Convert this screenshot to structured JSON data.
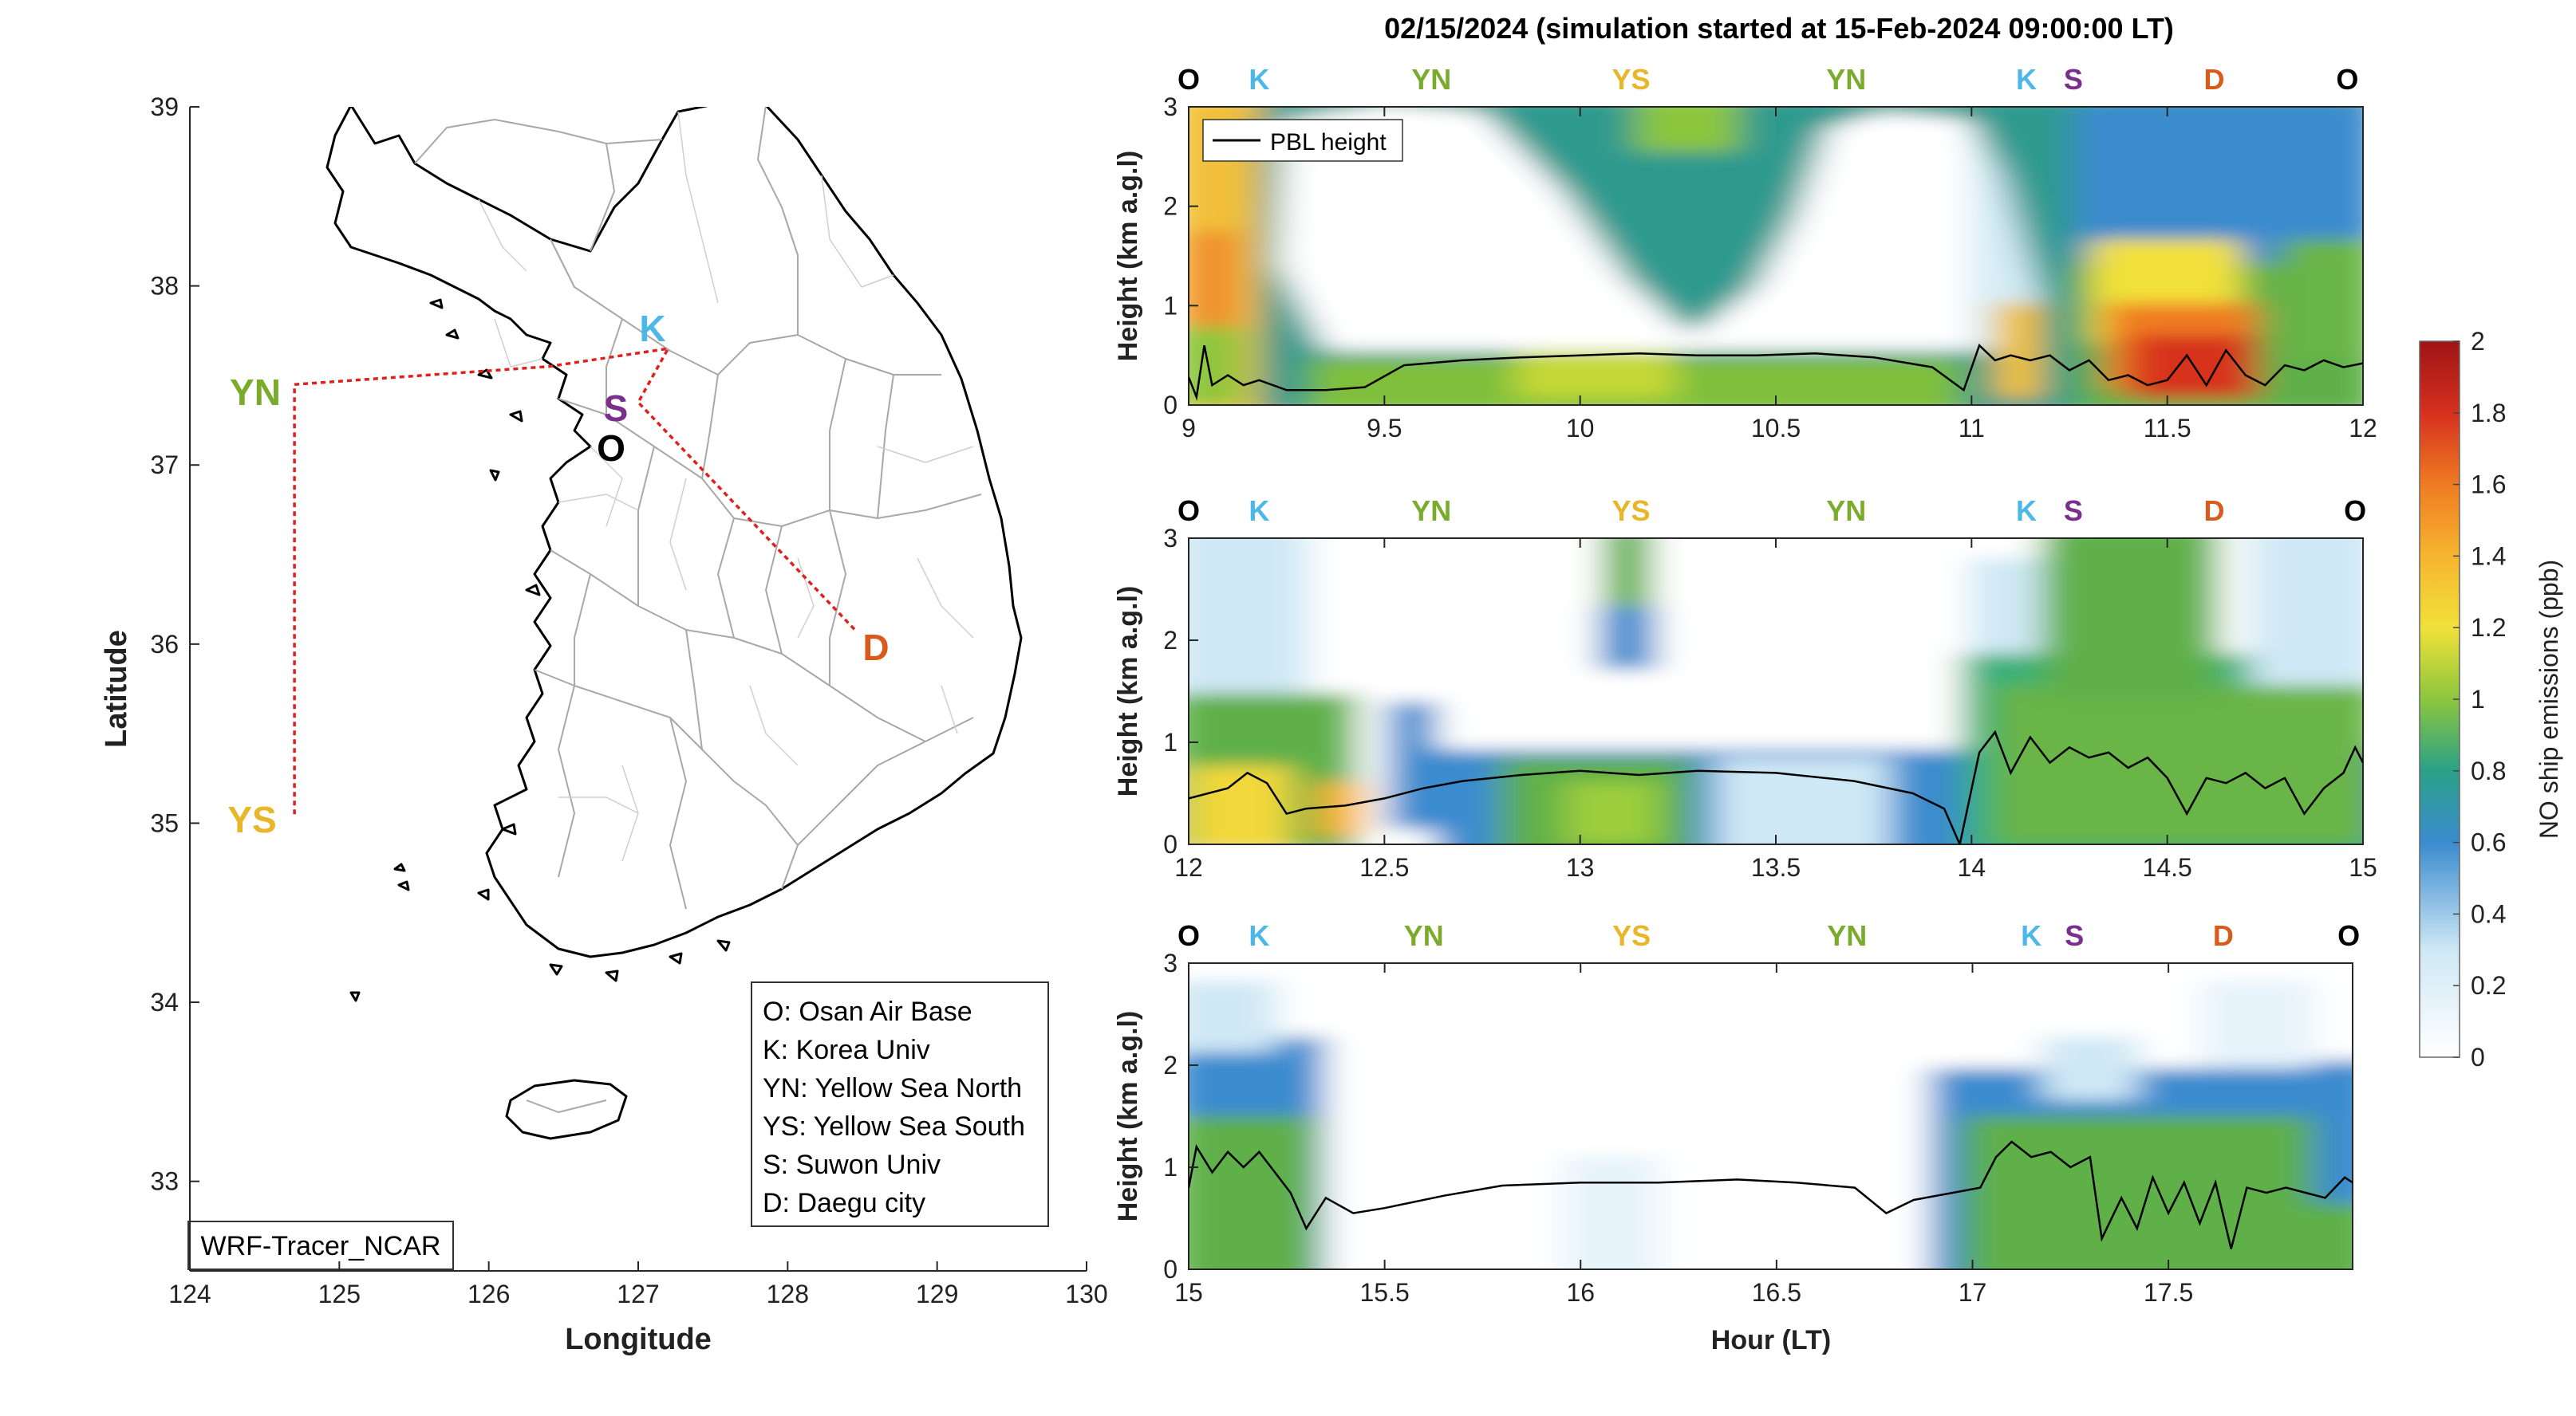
{
  "title": "02/15/2024 (simulation started at 15-Feb-2024 09:00:00 LT)",
  "colors": {
    "O": "#000000",
    "K": "#4db8e8",
    "YN": "#7aab2c",
    "YS": "#e8b629",
    "S": "#7b2f8c",
    "D": "#d95a1a",
    "route": "#e0201b"
  },
  "map": {
    "xlabel": "Longitude",
    "ylabel": "Latitude",
    "xlim": [
      124,
      130
    ],
    "ylim": [
      32.5,
      39
    ],
    "xticks": [
      124,
      125,
      126,
      127,
      128,
      129,
      130
    ],
    "yticks": [
      33,
      34,
      35,
      36,
      37,
      38,
      39
    ],
    "watermark": "WRF-Tracer_NCAR",
    "sites": [
      {
        "code": "K",
        "lon": 127.03,
        "lat": 37.59
      },
      {
        "code": "S",
        "lon": 126.86,
        "lat": 37.31
      },
      {
        "code": "O",
        "lon": 126.8,
        "lat": 37.1
      },
      {
        "code": "D",
        "lon": 128.55,
        "lat": 35.95
      },
      {
        "code": "YN",
        "lon": 124.35,
        "lat": 37.45
      },
      {
        "code": "YS",
        "lon": 124.3,
        "lat": 35.05
      }
    ],
    "route": [
      [
        124.7,
        35.05
      ],
      [
        124.7,
        37.45
      ],
      [
        126.4,
        37.55
      ],
      [
        127.2,
        37.65
      ],
      [
        127.0,
        37.35
      ],
      [
        128.45,
        36.08
      ]
    ],
    "legend": [
      "O: Osan Air Base",
      "K: Korea Univ",
      "YN: Yellow Sea North",
      "YS: Yellow Sea South",
      "S: Suwon Univ",
      "D: Daegu city"
    ]
  },
  "chart_data": {
    "type": "heatmap",
    "title": "02/15/2024 (simulation started at 15-Feb-2024 09:00:00 LT)",
    "xlabel": "Hour (LT)",
    "ylabel": "Height (km a.g.l)",
    "colorbar_label": "NO ship emissions (ppb)",
    "clim": [
      0,
      2
    ],
    "colorbar_ticks": [
      0,
      0.2,
      0.4,
      0.6,
      0.8,
      1,
      1.2,
      1.4,
      1.6,
      1.8,
      2
    ],
    "legend": [
      "PBL height"
    ],
    "legend_location": "top-left",
    "panels": [
      {
        "xlim": [
          9,
          12
        ],
        "ylim": [
          0,
          3
        ],
        "xticks": [
          9,
          9.5,
          10,
          10.5,
          11,
          11.5,
          12
        ],
        "yticks": [
          0,
          1,
          2,
          3
        ],
        "sites": [
          [
            "O",
            9
          ],
          [
            "K",
            9.18
          ],
          [
            "YN",
            9.62
          ],
          [
            "YS",
            10.13
          ],
          [
            "YN",
            10.68
          ],
          [
            "K",
            11.14
          ],
          [
            "S",
            11.26
          ],
          [
            "D",
            11.62
          ],
          [
            "O",
            11.96
          ]
        ],
        "pbl": [
          [
            9.0,
            0.28
          ],
          [
            9.02,
            0.08
          ],
          [
            9.04,
            0.6
          ],
          [
            9.06,
            0.2
          ],
          [
            9.1,
            0.3
          ],
          [
            9.14,
            0.2
          ],
          [
            9.18,
            0.25
          ],
          [
            9.25,
            0.15
          ],
          [
            9.35,
            0.15
          ],
          [
            9.45,
            0.18
          ],
          [
            9.55,
            0.4
          ],
          [
            9.7,
            0.45
          ],
          [
            9.85,
            0.48
          ],
          [
            10.0,
            0.5
          ],
          [
            10.15,
            0.52
          ],
          [
            10.3,
            0.5
          ],
          [
            10.45,
            0.5
          ],
          [
            10.6,
            0.52
          ],
          [
            10.75,
            0.48
          ],
          [
            10.9,
            0.38
          ],
          [
            10.98,
            0.15
          ],
          [
            11.02,
            0.6
          ],
          [
            11.06,
            0.45
          ],
          [
            11.1,
            0.5
          ],
          [
            11.15,
            0.45
          ],
          [
            11.2,
            0.5
          ],
          [
            11.25,
            0.35
          ],
          [
            11.3,
            0.45
          ],
          [
            11.35,
            0.25
          ],
          [
            11.4,
            0.3
          ],
          [
            11.45,
            0.2
          ],
          [
            11.5,
            0.25
          ],
          [
            11.55,
            0.5
          ],
          [
            11.6,
            0.2
          ],
          [
            11.65,
            0.55
          ],
          [
            11.7,
            0.3
          ],
          [
            11.75,
            0.2
          ],
          [
            11.8,
            0.4
          ],
          [
            11.85,
            0.35
          ],
          [
            11.9,
            0.45
          ],
          [
            11.95,
            0.38
          ],
          [
            12.0,
            0.42
          ]
        ]
      },
      {
        "xlim": [
          12,
          15
        ],
        "ylim": [
          0,
          3
        ],
        "xticks": [
          12,
          12.5,
          13,
          13.5,
          14,
          14.5,
          15
        ],
        "yticks": [
          0,
          1,
          2,
          3
        ],
        "sites": [
          [
            "O",
            12
          ],
          [
            "K",
            12.18
          ],
          [
            "YN",
            12.62
          ],
          [
            "YS",
            13.13
          ],
          [
            "YN",
            13.68
          ],
          [
            "K",
            14.14
          ],
          [
            "S",
            14.26
          ],
          [
            "D",
            14.62
          ],
          [
            "O",
            14.98
          ]
        ],
        "pbl": [
          [
            12.0,
            0.45
          ],
          [
            12.05,
            0.5
          ],
          [
            12.1,
            0.55
          ],
          [
            12.15,
            0.7
          ],
          [
            12.2,
            0.6
          ],
          [
            12.25,
            0.3
          ],
          [
            12.3,
            0.35
          ],
          [
            12.4,
            0.38
          ],
          [
            12.5,
            0.45
          ],
          [
            12.6,
            0.55
          ],
          [
            12.7,
            0.62
          ],
          [
            12.85,
            0.68
          ],
          [
            13.0,
            0.72
          ],
          [
            13.15,
            0.68
          ],
          [
            13.3,
            0.72
          ],
          [
            13.5,
            0.7
          ],
          [
            13.7,
            0.62
          ],
          [
            13.85,
            0.5
          ],
          [
            13.93,
            0.35
          ],
          [
            13.97,
            0.0
          ],
          [
            14.02,
            0.9
          ],
          [
            14.06,
            1.1
          ],
          [
            14.1,
            0.7
          ],
          [
            14.15,
            1.05
          ],
          [
            14.2,
            0.8
          ],
          [
            14.25,
            0.95
          ],
          [
            14.3,
            0.85
          ],
          [
            14.35,
            0.9
          ],
          [
            14.4,
            0.75
          ],
          [
            14.45,
            0.85
          ],
          [
            14.5,
            0.65
          ],
          [
            14.55,
            0.3
          ],
          [
            14.6,
            0.65
          ],
          [
            14.65,
            0.6
          ],
          [
            14.7,
            0.7
          ],
          [
            14.75,
            0.55
          ],
          [
            14.8,
            0.65
          ],
          [
            14.85,
            0.3
          ],
          [
            14.9,
            0.55
          ],
          [
            14.95,
            0.7
          ],
          [
            14.98,
            0.95
          ],
          [
            15.0,
            0.8
          ]
        ]
      },
      {
        "xlim": [
          15,
          17.97
        ],
        "ylim": [
          0,
          3
        ],
        "xticks": [
          15,
          15.5,
          16,
          16.5,
          17,
          17.5
        ],
        "yticks": [
          0,
          1,
          2,
          3
        ],
        "sites": [
          [
            "O",
            15
          ],
          [
            "K",
            15.18
          ],
          [
            "YN",
            15.6
          ],
          [
            "YS",
            16.13
          ],
          [
            "YN",
            16.68
          ],
          [
            "K",
            17.15
          ],
          [
            "S",
            17.26
          ],
          [
            "D",
            17.64
          ],
          [
            "O",
            17.96
          ]
        ],
        "pbl": [
          [
            15.0,
            0.8
          ],
          [
            15.02,
            1.2
          ],
          [
            15.06,
            0.95
          ],
          [
            15.1,
            1.15
          ],
          [
            15.14,
            1.0
          ],
          [
            15.18,
            1.15
          ],
          [
            15.22,
            0.95
          ],
          [
            15.26,
            0.75
          ],
          [
            15.3,
            0.4
          ],
          [
            15.35,
            0.7
          ],
          [
            15.42,
            0.55
          ],
          [
            15.5,
            0.6
          ],
          [
            15.65,
            0.72
          ],
          [
            15.8,
            0.82
          ],
          [
            16.0,
            0.85
          ],
          [
            16.2,
            0.85
          ],
          [
            16.4,
            0.88
          ],
          [
            16.55,
            0.85
          ],
          [
            16.7,
            0.8
          ],
          [
            16.78,
            0.55
          ],
          [
            16.85,
            0.68
          ],
          [
            16.95,
            0.75
          ],
          [
            17.02,
            0.8
          ],
          [
            17.06,
            1.1
          ],
          [
            17.1,
            1.25
          ],
          [
            17.15,
            1.1
          ],
          [
            17.2,
            1.15
          ],
          [
            17.25,
            1.0
          ],
          [
            17.3,
            1.1
          ],
          [
            17.33,
            0.3
          ],
          [
            17.38,
            0.7
          ],
          [
            17.42,
            0.4
          ],
          [
            17.46,
            0.9
          ],
          [
            17.5,
            0.55
          ],
          [
            17.54,
            0.85
          ],
          [
            17.58,
            0.45
          ],
          [
            17.62,
            0.85
          ],
          [
            17.66,
            0.2
          ],
          [
            17.7,
            0.8
          ],
          [
            17.75,
            0.75
          ],
          [
            17.8,
            0.8
          ],
          [
            17.85,
            0.75
          ],
          [
            17.9,
            0.7
          ],
          [
            17.95,
            0.9
          ],
          [
            17.97,
            0.85
          ]
        ]
      }
    ]
  }
}
